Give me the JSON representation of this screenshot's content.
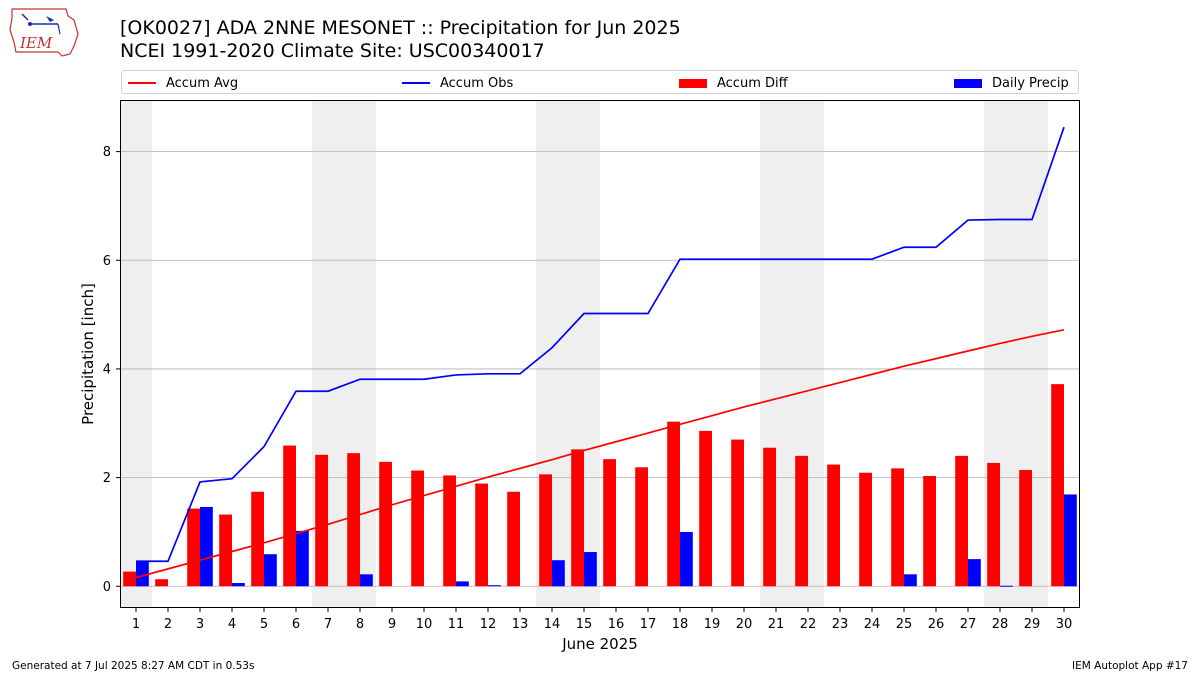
{
  "header": {
    "title_line1": "[OK0027] ADA 2NNE MESONET :: Precipitation for Jun 2025",
    "title_line2": "NCEI 1991-2020 Climate Site: USC00340017",
    "logo_text": "IEM"
  },
  "legend": {
    "accum_avg": "Accum Avg",
    "accum_obs": "Accum Obs",
    "accum_diff": "Accum Diff",
    "daily_precip": "Daily Precip"
  },
  "footer": {
    "generated": "Generated at 7 Jul 2025 8:27 AM CDT in 0.53s",
    "app": "IEM Autoplot App #17"
  },
  "colors": {
    "accum_avg": "#ff0000",
    "accum_obs": "#0000ff",
    "accum_diff": "#ff0000",
    "daily_precip": "#0000ff",
    "weekend_shade": "#efefef",
    "grid": "#b0b0b0"
  },
  "chart_data": {
    "type": "bar",
    "xlabel": "June 2025",
    "ylabel": "Precipitation [inch]",
    "xlim": [
      0.5,
      30.5
    ],
    "ylim": [
      -0.4,
      8.95
    ],
    "yticks": [
      0,
      2,
      4,
      6,
      8
    ],
    "grid": "horizontal",
    "legend_position": "top",
    "days": [
      1,
      2,
      3,
      4,
      5,
      6,
      7,
      8,
      9,
      10,
      11,
      12,
      13,
      14,
      15,
      16,
      17,
      18,
      19,
      20,
      21,
      22,
      23,
      24,
      25,
      26,
      27,
      28,
      29,
      30
    ],
    "weekend_shaded_days": [
      [
        1,
        1
      ],
      [
        7,
        8
      ],
      [
        14,
        15
      ],
      [
        21,
        22
      ],
      [
        28,
        29
      ]
    ],
    "series": [
      {
        "name": "Accum Avg",
        "kind": "line",
        "values": [
          0.16,
          0.32,
          0.48,
          0.64,
          0.8,
          0.97,
          1.14,
          1.32,
          1.5,
          1.67,
          1.84,
          2.01,
          2.17,
          2.33,
          2.5,
          2.66,
          2.82,
          2.98,
          3.14,
          3.3,
          3.45,
          3.6,
          3.75,
          3.9,
          4.05,
          4.19,
          4.33,
          4.47,
          4.6,
          4.72
        ]
      },
      {
        "name": "Accum Obs",
        "kind": "line",
        "values": [
          0.46,
          0.46,
          1.92,
          1.98,
          2.57,
          3.59,
          3.59,
          3.81,
          3.81,
          3.81,
          3.89,
          3.91,
          3.91,
          4.39,
          5.02,
          5.02,
          5.02,
          6.02,
          6.02,
          6.02,
          6.02,
          6.02,
          6.02,
          6.02,
          6.24,
          6.24,
          6.74,
          6.75,
          6.75,
          8.45
        ]
      },
      {
        "name": "Accum Diff",
        "kind": "bar",
        "values": [
          0.27,
          0.13,
          1.43,
          1.32,
          1.74,
          2.59,
          2.42,
          2.45,
          2.29,
          2.13,
          2.04,
          1.89,
          1.74,
          2.06,
          2.52,
          2.34,
          2.19,
          3.03,
          2.86,
          2.7,
          2.55,
          2.4,
          2.24,
          2.09,
          2.17,
          2.03,
          2.4,
          2.27,
          2.14,
          3.72
        ]
      },
      {
        "name": "Daily Precip",
        "kind": "bar",
        "values": [
          0.46,
          0.0,
          1.46,
          0.06,
          0.59,
          1.02,
          0.0,
          0.22,
          0.0,
          0.0,
          0.09,
          0.02,
          0.0,
          0.48,
          0.63,
          0.0,
          0.0,
          1.0,
          0.0,
          0.0,
          0.0,
          0.0,
          0.0,
          0.0,
          0.22,
          0.0,
          0.5,
          0.01,
          0.0,
          1.69
        ]
      }
    ]
  }
}
